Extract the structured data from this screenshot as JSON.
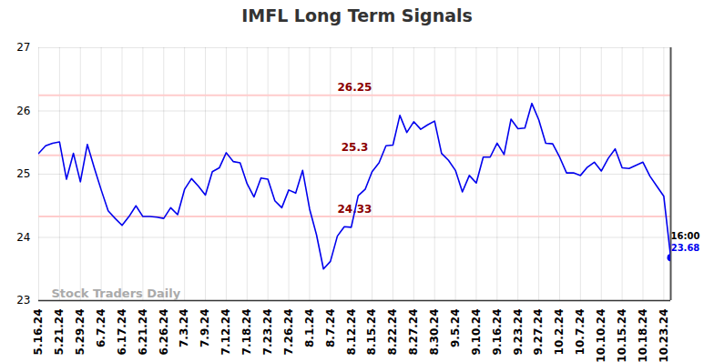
{
  "chart_data": {
    "type": "line",
    "title": "IMFL Long Term Signals",
    "categories": [
      "5.16.24",
      null,
      null,
      "5.21.24",
      null,
      null,
      "5.29.24",
      null,
      null,
      "6.7.24",
      null,
      null,
      "6.17.24",
      null,
      null,
      "6.21.24",
      null,
      null,
      "6.26.24",
      null,
      null,
      "7.3.24",
      null,
      null,
      "7.9.24",
      null,
      null,
      "7.12.24",
      null,
      null,
      "7.18.24",
      null,
      null,
      "7.23.24",
      null,
      null,
      "7.26.24",
      null,
      null,
      "8.1.24",
      null,
      null,
      "8.7.24",
      null,
      null,
      "8.12.24",
      null,
      null,
      "8.15.24",
      null,
      null,
      "8.22.24",
      null,
      null,
      "8.27.24",
      null,
      null,
      "8.30.24",
      null,
      null,
      "9.5.24",
      null,
      null,
      "9.10.24",
      null,
      null,
      "9.16.24",
      null,
      null,
      "9.23.24",
      null,
      null,
      "9.27.24",
      null,
      null,
      "10.2.24",
      null,
      null,
      "10.7.24",
      null,
      null,
      "10.10.24",
      null,
      null,
      "10.15.24",
      null,
      null,
      "10.18.24",
      null,
      null,
      "10.23.24",
      null
    ],
    "values": [
      25.33,
      25.45,
      25.49,
      25.51,
      24.92,
      25.33,
      24.88,
      25.47,
      25.1,
      24.75,
      24.42,
      24.3,
      24.19,
      24.33,
      24.5,
      24.33,
      24.33,
      24.32,
      24.3,
      24.47,
      24.36,
      24.76,
      24.93,
      24.81,
      24.67,
      25.04,
      25.1,
      25.34,
      25.2,
      25.18,
      24.85,
      24.64,
      24.94,
      24.92,
      24.58,
      24.47,
      24.75,
      24.7,
      25.06,
      24.45,
      24.04,
      23.5,
      23.62,
      24.02,
      24.17,
      24.16,
      24.66,
      24.76,
      25.04,
      25.18,
      25.45,
      25.46,
      25.93,
      25.66,
      25.83,
      25.71,
      25.78,
      25.84,
      25.33,
      25.22,
      25.06,
      24.72,
      24.98,
      24.86,
      25.27,
      25.27,
      25.49,
      25.31,
      25.87,
      25.72,
      25.73,
      26.12,
      25.86,
      25.49,
      25.48,
      25.27,
      25.02,
      25.02,
      24.98,
      25.11,
      25.19,
      25.05,
      25.25,
      25.4,
      25.1,
      25.09,
      25.14,
      25.19,
      24.97,
      24.81,
      24.65,
      23.68
    ],
    "color": "#0000ee",
    "ylim": [
      23,
      27
    ],
    "yticks": [
      23,
      24,
      25,
      26,
      27
    ],
    "grid": true,
    "levels": [
      26.25,
      25.3,
      24.33
    ],
    "last_point_label": "16:00",
    "watermark": "Stock Traders Daily"
  }
}
